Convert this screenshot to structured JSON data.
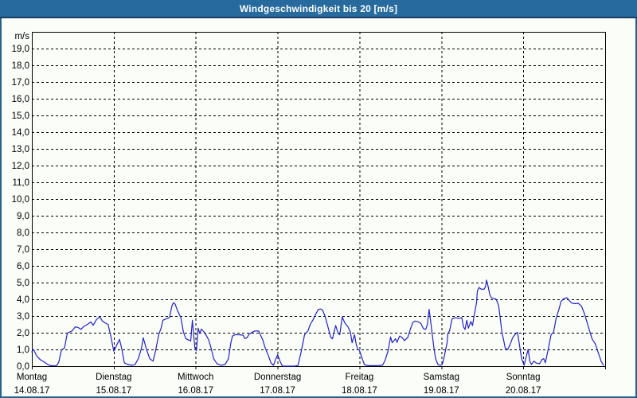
{
  "window": {
    "title": "Windgeschwindigkeit bis 20 [m/s]"
  },
  "colors": {
    "titlebar_bg": "#266a9e",
    "titlebar_underline": "#1a3e63",
    "frame_border": "#23648f",
    "page_bg": "#fbfdf9",
    "axis": "#000000",
    "grid": "#000000",
    "line": "#2222cc",
    "text": "#000000"
  },
  "chart_data": {
    "type": "line",
    "title": "Windgeschwindigkeit bis 20 [m/s]",
    "y_unit_label": "m/s",
    "ylabel": "",
    "xlabel": "",
    "ylim": [
      0,
      20
    ],
    "y_tick_step": 1,
    "grid": "dashed",
    "legend_position": "none",
    "y_tick_labels": [
      "0,0",
      "1,0",
      "2,0",
      "3,0",
      "4,0",
      "5,0",
      "6,0",
      "7,0",
      "8,0",
      "9,0",
      "10,0",
      "11,0",
      "12,0",
      "13,0",
      "14,0",
      "15,0",
      "16,0",
      "17,0",
      "18,0",
      "19,0"
    ],
    "x_days": [
      {
        "label": "Montag",
        "date": "14.08.17"
      },
      {
        "label": "Dienstag",
        "date": "15.08.17"
      },
      {
        "label": "Mittwoch",
        "date": "16.08.17"
      },
      {
        "label": "Donnerstag",
        "date": "17.08.17"
      },
      {
        "label": "Freitag",
        "date": "18.08.17"
      },
      {
        "label": "Samstag",
        "date": "19.08.17"
      },
      {
        "label": "Sonntag",
        "date": "20.08.17"
      }
    ],
    "series": [
      {
        "name": "Windgeschwindigkeit",
        "unit": "m/s",
        "x_unit": "days_from_start",
        "points": [
          [
            0.0,
            0.85
          ],
          [
            0.02,
            1.0
          ],
          [
            0.05,
            0.7
          ],
          [
            0.07,
            0.55
          ],
          [
            0.1,
            0.4
          ],
          [
            0.15,
            0.25
          ],
          [
            0.19,
            0.12
          ],
          [
            0.23,
            0.03
          ],
          [
            0.3,
            0.02
          ],
          [
            0.33,
            0.25
          ],
          [
            0.36,
            0.95
          ],
          [
            0.4,
            1.1
          ],
          [
            0.43,
            1.9
          ],
          [
            0.44,
            2.0
          ],
          [
            0.49,
            2.1
          ],
          [
            0.53,
            2.35
          ],
          [
            0.57,
            2.3
          ],
          [
            0.6,
            2.2
          ],
          [
            0.64,
            2.4
          ],
          [
            0.68,
            2.5
          ],
          [
            0.72,
            2.65
          ],
          [
            0.75,
            2.45
          ],
          [
            0.79,
            2.8
          ],
          [
            0.83,
            2.95
          ],
          [
            0.86,
            2.7
          ],
          [
            0.89,
            2.6
          ],
          [
            0.93,
            2.5
          ],
          [
            0.96,
            1.9
          ],
          [
            1.0,
            0.9
          ],
          [
            1.04,
            1.3
          ],
          [
            1.07,
            1.6
          ],
          [
            1.1,
            1.0
          ],
          [
            1.13,
            0.2
          ],
          [
            1.17,
            0.1
          ],
          [
            1.22,
            0.05
          ],
          [
            1.26,
            0.1
          ],
          [
            1.3,
            0.45
          ],
          [
            1.34,
            1.1
          ],
          [
            1.36,
            1.7
          ],
          [
            1.4,
            1.0
          ],
          [
            1.44,
            0.45
          ],
          [
            1.48,
            0.3
          ],
          [
            1.51,
            0.9
          ],
          [
            1.55,
            1.9
          ],
          [
            1.58,
            2.3
          ],
          [
            1.6,
            2.75
          ],
          [
            1.65,
            2.85
          ],
          [
            1.68,
            2.9
          ],
          [
            1.71,
            3.6
          ],
          [
            1.73,
            3.8
          ],
          [
            1.75,
            3.7
          ],
          [
            1.78,
            3.3
          ],
          [
            1.82,
            2.9
          ],
          [
            1.85,
            2.05
          ],
          [
            1.88,
            1.65
          ],
          [
            1.92,
            1.55
          ],
          [
            1.94,
            1.5
          ],
          [
            1.96,
            2.75
          ],
          [
            1.99,
            1.1
          ],
          [
            2.01,
            0.92
          ],
          [
            2.03,
            2.27
          ],
          [
            2.05,
            1.96
          ],
          [
            2.07,
            2.22
          ],
          [
            2.11,
            2.0
          ],
          [
            2.14,
            1.75
          ],
          [
            2.16,
            1.55
          ],
          [
            2.19,
            1.05
          ],
          [
            2.22,
            0.45
          ],
          [
            2.26,
            0.15
          ],
          [
            2.31,
            0.05
          ],
          [
            2.36,
            0.1
          ],
          [
            2.4,
            0.45
          ],
          [
            2.43,
            1.4
          ],
          [
            2.45,
            1.8
          ],
          [
            2.48,
            1.88
          ],
          [
            2.53,
            1.88
          ],
          [
            2.58,
            1.85
          ],
          [
            2.6,
            1.65
          ],
          [
            2.63,
            1.72
          ],
          [
            2.65,
            1.9
          ],
          [
            2.69,
            2.03
          ],
          [
            2.72,
            2.1
          ],
          [
            2.77,
            2.1
          ],
          [
            2.82,
            1.56
          ],
          [
            2.85,
            1.08
          ],
          [
            2.89,
            0.6
          ],
          [
            2.92,
            0.2
          ],
          [
            2.95,
            0.05
          ],
          [
            2.98,
            0.45
          ],
          [
            3.0,
            0.68
          ],
          [
            3.03,
            0.3
          ],
          [
            3.06,
            0.0
          ],
          [
            3.21,
            0.0
          ],
          [
            3.25,
            0.05
          ],
          [
            3.29,
            0.9
          ],
          [
            3.31,
            1.4
          ],
          [
            3.33,
            1.88
          ],
          [
            3.37,
            2.1
          ],
          [
            3.4,
            2.5
          ],
          [
            3.43,
            2.75
          ],
          [
            3.47,
            3.15
          ],
          [
            3.5,
            3.4
          ],
          [
            3.53,
            3.42
          ],
          [
            3.55,
            3.35
          ],
          [
            3.58,
            3.0
          ],
          [
            3.62,
            2.27
          ],
          [
            3.65,
            1.72
          ],
          [
            3.67,
            1.64
          ],
          [
            3.69,
            2.03
          ],
          [
            3.71,
            2.43
          ],
          [
            3.74,
            1.96
          ],
          [
            3.76,
            1.88
          ],
          [
            3.79,
            2.95
          ],
          [
            3.82,
            2.6
          ],
          [
            3.86,
            2.35
          ],
          [
            3.89,
            2.03
          ],
          [
            3.91,
            1.4
          ],
          [
            3.94,
            1.88
          ],
          [
            3.96,
            1.32
          ],
          [
            3.98,
            1.0
          ],
          [
            4.0,
            0.95
          ],
          [
            4.03,
            0.5
          ],
          [
            4.06,
            0.1
          ],
          [
            4.1,
            0.03
          ],
          [
            4.23,
            0.03
          ],
          [
            4.28,
            0.05
          ],
          [
            4.31,
            0.3
          ],
          [
            4.35,
            0.92
          ],
          [
            4.38,
            1.75
          ],
          [
            4.4,
            1.4
          ],
          [
            4.44,
            1.64
          ],
          [
            4.46,
            1.43
          ],
          [
            4.49,
            1.8
          ],
          [
            4.52,
            1.72
          ],
          [
            4.55,
            1.53
          ],
          [
            4.59,
            1.72
          ],
          [
            4.62,
            2.19
          ],
          [
            4.65,
            2.6
          ],
          [
            4.68,
            2.7
          ],
          [
            4.72,
            2.65
          ],
          [
            4.75,
            2.55
          ],
          [
            4.78,
            2.25
          ],
          [
            4.81,
            2.2
          ],
          [
            4.83,
            2.5
          ],
          [
            4.85,
            3.4
          ],
          [
            4.88,
            2.27
          ],
          [
            4.91,
            1.08
          ],
          [
            4.93,
            0.45
          ],
          [
            4.96,
            0.08
          ],
          [
            4.99,
            0.05
          ],
          [
            5.01,
            0.1
          ],
          [
            5.03,
            0.45
          ],
          [
            5.05,
            0.92
          ],
          [
            5.07,
            1.4
          ],
          [
            5.08,
            1.96
          ],
          [
            5.1,
            2.11
          ],
          [
            5.13,
            2.83
          ],
          [
            5.17,
            2.9
          ],
          [
            5.21,
            2.85
          ],
          [
            5.25,
            2.9
          ],
          [
            5.27,
            2.35
          ],
          [
            5.29,
            2.19
          ],
          [
            5.31,
            2.75
          ],
          [
            5.33,
            2.27
          ],
          [
            5.36,
            2.67
          ],
          [
            5.38,
            2.43
          ],
          [
            5.4,
            2.99
          ],
          [
            5.43,
            3.8
          ],
          [
            5.44,
            4.5
          ],
          [
            5.46,
            4.7
          ],
          [
            5.49,
            4.6
          ],
          [
            5.52,
            4.6
          ],
          [
            5.54,
            4.75
          ],
          [
            5.55,
            5.15
          ],
          [
            5.57,
            4.8
          ],
          [
            5.59,
            4.3
          ],
          [
            5.61,
            4.1
          ],
          [
            5.64,
            4.05
          ],
          [
            5.67,
            4.0
          ],
          [
            5.7,
            3.6
          ],
          [
            5.72,
            2.83
          ],
          [
            5.74,
            2.03
          ],
          [
            5.76,
            1.56
          ],
          [
            5.78,
            1.08
          ],
          [
            5.81,
            1.0
          ],
          [
            5.84,
            1.3
          ],
          [
            5.87,
            1.7
          ],
          [
            5.9,
            1.9
          ],
          [
            5.93,
            2.03
          ],
          [
            5.96,
            1.08
          ],
          [
            5.98,
            0.45
          ],
          [
            6.01,
            0.05
          ],
          [
            6.03,
            0.45
          ],
          [
            6.06,
            1.0
          ],
          [
            6.08,
            0.3
          ],
          [
            6.1,
            0.1
          ],
          [
            6.13,
            0.3
          ],
          [
            6.16,
            0.18
          ],
          [
            6.2,
            0.15
          ],
          [
            6.23,
            0.4
          ],
          [
            6.25,
            0.45
          ],
          [
            6.27,
            0.2
          ],
          [
            6.3,
            0.9
          ],
          [
            6.32,
            1.4
          ],
          [
            6.34,
            1.88
          ],
          [
            6.37,
            2.03
          ],
          [
            6.4,
            2.83
          ],
          [
            6.44,
            3.47
          ],
          [
            6.46,
            3.86
          ],
          [
            6.49,
            4.02
          ],
          [
            6.53,
            4.1
          ],
          [
            6.56,
            3.94
          ],
          [
            6.59,
            3.78
          ],
          [
            6.63,
            3.74
          ],
          [
            6.67,
            3.76
          ],
          [
            6.71,
            3.6
          ],
          [
            6.75,
            3.1
          ],
          [
            6.78,
            2.6
          ],
          [
            6.81,
            2.11
          ],
          [
            6.84,
            1.64
          ],
          [
            6.88,
            1.32
          ],
          [
            6.91,
            0.9
          ],
          [
            6.95,
            0.3
          ],
          [
            6.98,
            0.05
          ]
        ]
      }
    ]
  }
}
